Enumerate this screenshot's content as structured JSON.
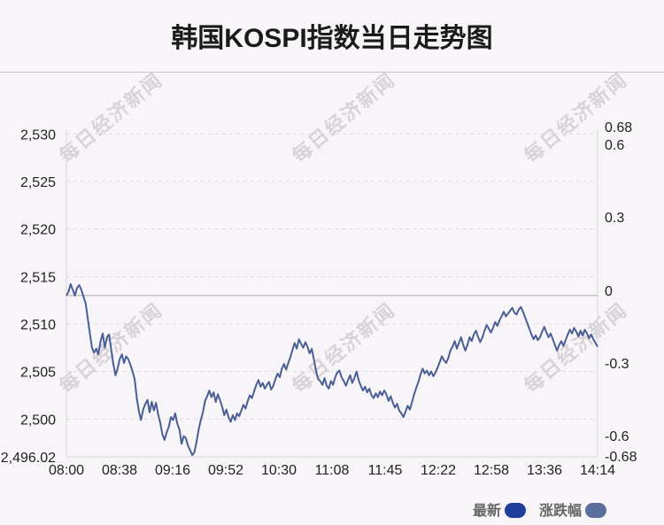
{
  "title": "韩国KOSPI指数当日走势图",
  "watermark": "每日经济新闻",
  "legend": [
    {
      "label": "最新",
      "color": "#1f3f9a"
    },
    {
      "label": "涨跌幅",
      "color": "#5a6f9c"
    }
  ],
  "chart_data": {
    "type": "line",
    "x_ticks": [
      "08:00",
      "08:38",
      "09:16",
      "09:52",
      "10:30",
      "11:08",
      "11:45",
      "12:22",
      "12:58",
      "13:36",
      "14:14"
    ],
    "y_left_ticks": [
      "2,530",
      "2,525",
      "2,520",
      "2,515",
      "2,510",
      "2,505",
      "2,500",
      "2,496.02"
    ],
    "y_left_tick_values": [
      2530,
      2525,
      2520,
      2515,
      2510,
      2505,
      2500,
      2496.02
    ],
    "y_right_ticks": [
      "0.68",
      "0.6",
      "0.3",
      "0",
      "-0.3",
      "-0.6",
      "-0.68"
    ],
    "ylim": [
      2496.02,
      2530.5
    ],
    "baseline": 2513,
    "x_range_minutes": [
      0,
      374
    ],
    "line_color": "#4a5f95",
    "series": [
      {
        "points": [
          [
            0,
            2513
          ],
          [
            1,
            2513.4
          ],
          [
            2,
            2514.2
          ],
          [
            3,
            2513.6
          ],
          [
            4,
            2513.0
          ],
          [
            5,
            2513.8
          ],
          [
            6,
            2514.1
          ],
          [
            7,
            2513.6
          ],
          [
            8,
            2512.9
          ],
          [
            9,
            2512.2
          ],
          [
            10,
            2510.6
          ],
          [
            11,
            2509.0
          ],
          [
            12,
            2507.5
          ],
          [
            13,
            2507.0
          ],
          [
            14,
            2507.4
          ],
          [
            15,
            2506.8
          ],
          [
            16,
            2508.2
          ],
          [
            17,
            2509.0
          ],
          [
            18,
            2507.5
          ],
          [
            19,
            2508.6
          ],
          [
            20,
            2508.9
          ],
          [
            21,
            2507.3
          ],
          [
            22,
            2505.8
          ],
          [
            23,
            2504.6
          ],
          [
            24,
            2505.3
          ],
          [
            25,
            2506.3
          ],
          [
            26,
            2506.8
          ],
          [
            27,
            2505.9
          ],
          [
            28,
            2506.6
          ],
          [
            29,
            2506.3
          ],
          [
            30,
            2505.7
          ],
          [
            31,
            2505.0
          ],
          [
            32,
            2504.2
          ],
          [
            33,
            2502.2
          ],
          [
            34,
            2500.8
          ],
          [
            35,
            2499.9
          ],
          [
            36,
            2501.0
          ],
          [
            37,
            2501.6
          ],
          [
            38,
            2502.0
          ],
          [
            39,
            2500.7
          ],
          [
            40,
            2501.8
          ],
          [
            41,
            2500.9
          ],
          [
            42,
            2501.7
          ],
          [
            43,
            2500.5
          ],
          [
            44,
            2499.6
          ],
          [
            45,
            2498.4
          ],
          [
            46,
            2497.8
          ],
          [
            47,
            2498.6
          ],
          [
            48,
            2499.2
          ],
          [
            49,
            2500.2
          ],
          [
            50,
            2499.9
          ],
          [
            51,
            2500.6
          ],
          [
            52,
            2499.5
          ],
          [
            53,
            2498.9
          ],
          [
            54,
            2497.4
          ],
          [
            55,
            2498.2
          ],
          [
            56,
            2498.0
          ],
          [
            57,
            2497.2
          ],
          [
            58,
            2496.7
          ],
          [
            59,
            2496.2
          ],
          [
            60,
            2496.5
          ],
          [
            61,
            2497.6
          ],
          [
            62,
            2498.9
          ],
          [
            63,
            2499.9
          ],
          [
            64,
            2500.7
          ],
          [
            65,
            2501.9
          ],
          [
            66,
            2502.4
          ],
          [
            67,
            2503.0
          ],
          [
            68,
            2502.3
          ],
          [
            69,
            2502.8
          ],
          [
            70,
            2501.8
          ],
          [
            71,
            2502.6
          ],
          [
            72,
            2502.0
          ],
          [
            73,
            2501.3
          ],
          [
            74,
            2500.4
          ],
          [
            75,
            2501.0
          ],
          [
            76,
            2500.2
          ],
          [
            77,
            2499.7
          ],
          [
            78,
            2500.4
          ],
          [
            79,
            2499.9
          ],
          [
            80,
            2500.6
          ],
          [
            81,
            2500.3
          ],
          [
            82,
            2500.9
          ],
          [
            83,
            2501.5
          ],
          [
            84,
            2501.1
          ],
          [
            85,
            2501.9
          ],
          [
            86,
            2502.5
          ],
          [
            87,
            2502.2
          ],
          [
            88,
            2502.9
          ],
          [
            89,
            2503.6
          ],
          [
            90,
            2504.1
          ],
          [
            91,
            2503.4
          ],
          [
            92,
            2503.8
          ],
          [
            93,
            2503.2
          ],
          [
            94,
            2503.6
          ],
          [
            95,
            2503.9
          ],
          [
            96,
            2503.1
          ],
          [
            97,
            2503.5
          ],
          [
            98,
            2504.2
          ],
          [
            99,
            2504.8
          ],
          [
            100,
            2504.4
          ],
          [
            101,
            2505.3
          ],
          [
            102,
            2505.8
          ],
          [
            103,
            2505.2
          ],
          [
            104,
            2505.9
          ],
          [
            105,
            2506.5
          ],
          [
            106,
            2507.3
          ],
          [
            107,
            2508.0
          ],
          [
            108,
            2507.4
          ],
          [
            109,
            2508.4
          ],
          [
            110,
            2507.9
          ],
          [
            111,
            2507.5
          ],
          [
            112,
            2508.1
          ],
          [
            113,
            2507.6
          ],
          [
            114,
            2506.9
          ],
          [
            115,
            2507.4
          ],
          [
            116,
            2506.3
          ],
          [
            117,
            2505.1
          ],
          [
            118,
            2504.2
          ],
          [
            119,
            2504.0
          ],
          [
            120,
            2503.6
          ],
          [
            121,
            2504.3
          ],
          [
            122,
            2503.5
          ],
          [
            123,
            2503.2
          ],
          [
            124,
            2504.0
          ],
          [
            125,
            2503.6
          ],
          [
            126,
            2504.4
          ],
          [
            127,
            2504.9
          ],
          [
            128,
            2505.1
          ],
          [
            129,
            2504.4
          ],
          [
            130,
            2504.0
          ],
          [
            131,
            2503.5
          ],
          [
            132,
            2504.1
          ],
          [
            133,
            2504.6
          ],
          [
            134,
            2503.8
          ],
          [
            135,
            2504.3
          ],
          [
            136,
            2505.0
          ],
          [
            137,
            2504.1
          ],
          [
            138,
            2503.5
          ],
          [
            139,
            2503.0
          ],
          [
            140,
            2503.4
          ],
          [
            141,
            2502.8
          ],
          [
            142,
            2503.2
          ],
          [
            143,
            2502.5
          ],
          [
            144,
            2502.2
          ],
          [
            145,
            2502.7
          ],
          [
            146,
            2502.3
          ],
          [
            147,
            2502.9
          ],
          [
            148,
            2502.5
          ],
          [
            149,
            2503.0
          ],
          [
            150,
            2502.6
          ],
          [
            151,
            2501.9
          ],
          [
            152,
            2502.4
          ],
          [
            153,
            2501.7
          ],
          [
            154,
            2501.2
          ],
          [
            155,
            2501.6
          ],
          [
            156,
            2500.9
          ],
          [
            157,
            2500.6
          ],
          [
            158,
            2500.2
          ],
          [
            159,
            2500.8
          ],
          [
            160,
            2501.4
          ],
          [
            161,
            2501.0
          ],
          [
            162,
            2501.8
          ],
          [
            163,
            2502.6
          ],
          [
            164,
            2503.3
          ],
          [
            165,
            2503.9
          ],
          [
            166,
            2504.7
          ],
          [
            167,
            2505.3
          ],
          [
            168,
            2504.8
          ],
          [
            169,
            2505.1
          ],
          [
            170,
            2504.6
          ],
          [
            171,
            2505.0
          ],
          [
            172,
            2504.5
          ],
          [
            173,
            2504.9
          ],
          [
            174,
            2505.4
          ],
          [
            175,
            2506.0
          ],
          [
            176,
            2506.6
          ],
          [
            177,
            2506.2
          ],
          [
            178,
            2505.9
          ],
          [
            179,
            2506.4
          ],
          [
            180,
            2507.2
          ],
          [
            181,
            2507.6
          ],
          [
            182,
            2508.2
          ],
          [
            183,
            2507.4
          ],
          [
            184,
            2508.0
          ],
          [
            185,
            2508.6
          ],
          [
            186,
            2507.8
          ],
          [
            187,
            2507.2
          ],
          [
            188,
            2507.8
          ],
          [
            189,
            2508.6
          ],
          [
            190,
            2508.2
          ],
          [
            191,
            2508.9
          ],
          [
            192,
            2509.3
          ],
          [
            193,
            2508.6
          ],
          [
            194,
            2508.1
          ],
          [
            195,
            2508.6
          ],
          [
            196,
            2509.3
          ],
          [
            197,
            2509.9
          ],
          [
            198,
            2509.5
          ],
          [
            199,
            2509.1
          ],
          [
            200,
            2509.6
          ],
          [
            201,
            2510.2
          ],
          [
            202,
            2509.8
          ],
          [
            203,
            2510.4
          ],
          [
            204,
            2510.8
          ],
          [
            205,
            2511.3
          ],
          [
            206,
            2510.8
          ],
          [
            207,
            2511.1
          ],
          [
            208,
            2511.4
          ],
          [
            209,
            2511.7
          ],
          [
            210,
            2511.2
          ],
          [
            211,
            2511.0
          ],
          [
            212,
            2511.5
          ],
          [
            213,
            2511.8
          ],
          [
            214,
            2511.3
          ],
          [
            215,
            2510.7
          ],
          [
            216,
            2510.1
          ],
          [
            217,
            2509.5
          ],
          [
            218,
            2508.9
          ],
          [
            219,
            2508.4
          ],
          [
            220,
            2508.8
          ],
          [
            221,
            2508.3
          ],
          [
            222,
            2508.6
          ],
          [
            223,
            2509.2
          ],
          [
            224,
            2509.7
          ],
          [
            225,
            2509.1
          ],
          [
            226,
            2508.6
          ],
          [
            227,
            2509.0
          ],
          [
            228,
            2508.4
          ],
          [
            229,
            2507.8
          ],
          [
            230,
            2507.2
          ],
          [
            231,
            2507.8
          ],
          [
            232,
            2508.2
          ],
          [
            233,
            2507.7
          ],
          [
            234,
            2508.3
          ],
          [
            235,
            2508.9
          ],
          [
            236,
            2509.4
          ],
          [
            237,
            2509.0
          ],
          [
            238,
            2509.6
          ],
          [
            239,
            2509.2
          ],
          [
            240,
            2508.7
          ],
          [
            241,
            2509.3
          ],
          [
            242,
            2508.8
          ],
          [
            243,
            2509.4
          ],
          [
            244,
            2509.0
          ],
          [
            245,
            2508.5
          ],
          [
            246,
            2508.9
          ],
          [
            247,
            2508.4
          ],
          [
            248,
            2508.0
          ],
          [
            249,
            2507.6
          ]
        ]
      }
    ]
  }
}
